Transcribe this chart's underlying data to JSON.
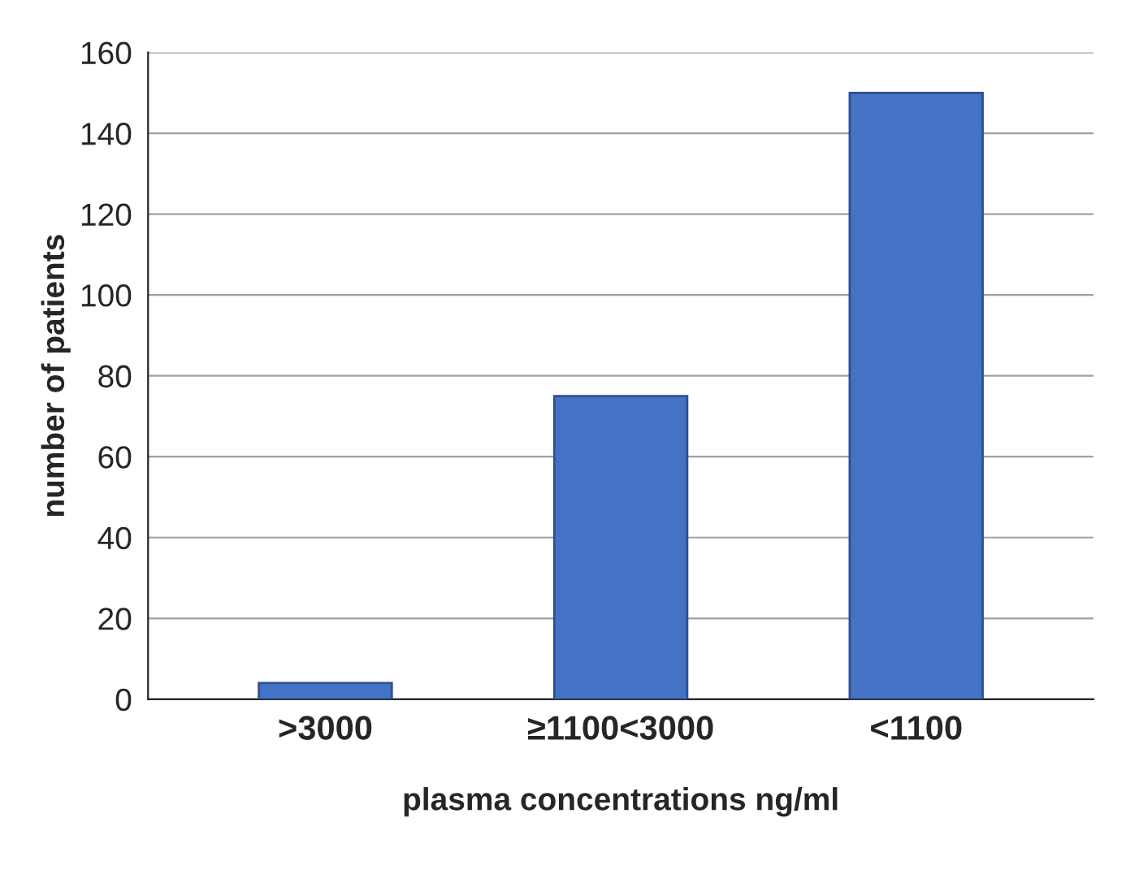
{
  "chart_data": {
    "type": "bar",
    "xlabel": "plasma concentrations ng/ml",
    "ylabel": "number of patients",
    "categories": [
      ">3000",
      "≥1100<3000",
      "<1100"
    ],
    "values": [
      4,
      75,
      150
    ],
    "color": "#4472c4",
    "ylim": [
      0,
      160
    ],
    "yticks": [
      0,
      20,
      40,
      60,
      80,
      100,
      120,
      140,
      160
    ],
    "grid": "y"
  }
}
